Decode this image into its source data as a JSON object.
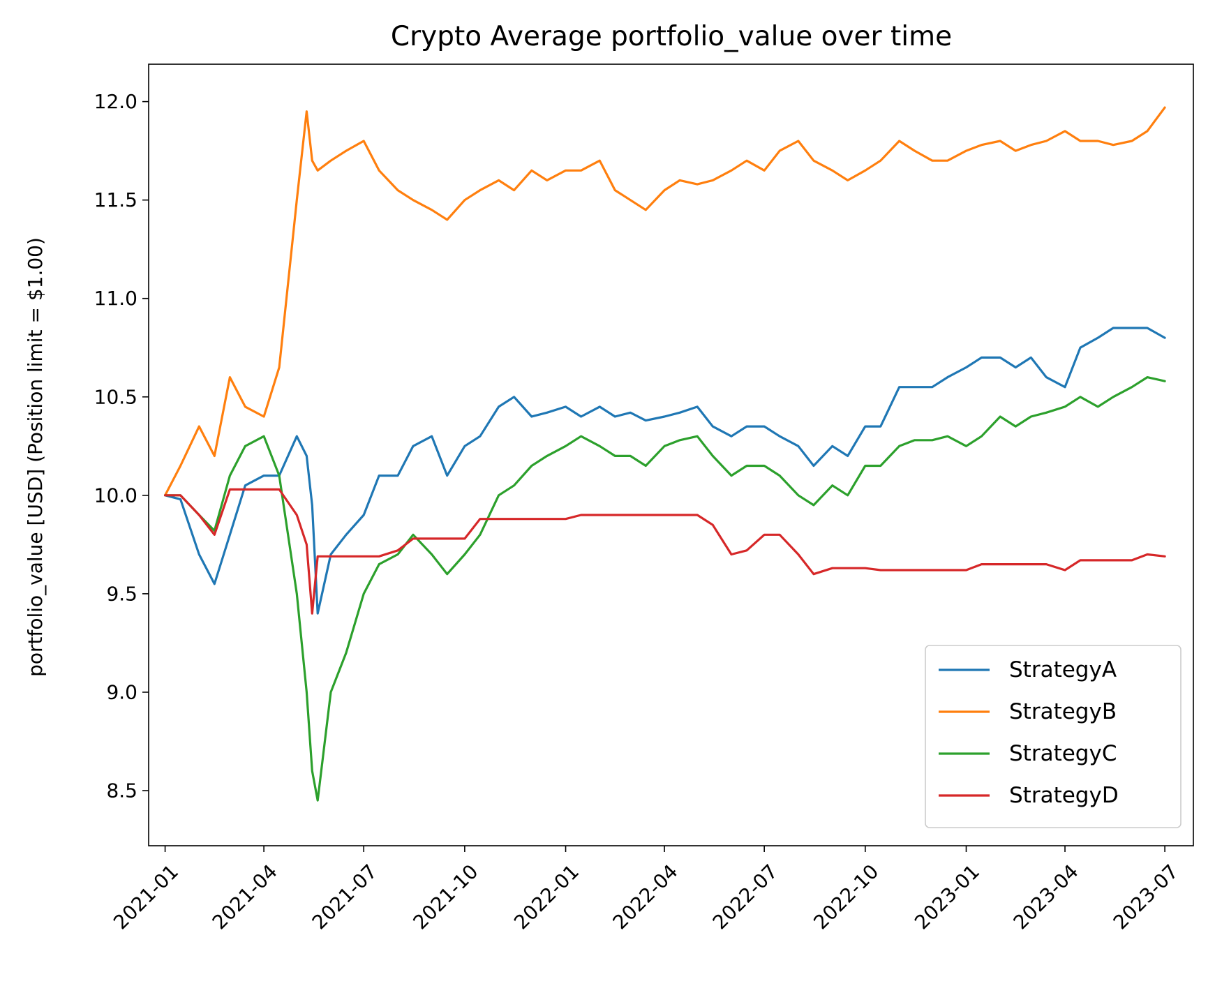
{
  "chart_data": {
    "type": "line",
    "title": "Crypto Average portfolio_value over time",
    "xlabel": "",
    "ylabel": "portfolio_value [USD] (Position limit = $1.00)",
    "xlim": [
      "2020-12-17",
      "2023-07-27"
    ],
    "ylim": [
      8.22,
      12.19
    ],
    "x_ticks": [
      "2021-01",
      "2021-04",
      "2021-07",
      "2021-10",
      "2022-01",
      "2022-04",
      "2022-07",
      "2022-10",
      "2023-01",
      "2023-04",
      "2023-07"
    ],
    "y_ticks": [
      "8.5",
      "9.0",
      "9.5",
      "10.0",
      "10.5",
      "11.0",
      "11.5",
      "12.0"
    ],
    "y_tick_values": [
      8.5,
      9.0,
      9.5,
      10.0,
      10.5,
      11.0,
      11.5,
      12.0
    ],
    "grid": false,
    "legend_position": "lower-right",
    "x": [
      "2021-01-01",
      "2021-01-15",
      "2021-02-01",
      "2021-02-15",
      "2021-03-01",
      "2021-03-15",
      "2021-04-01",
      "2021-04-15",
      "2021-05-01",
      "2021-05-10",
      "2021-05-15",
      "2021-05-20",
      "2021-06-01",
      "2021-06-15",
      "2021-07-01",
      "2021-07-15",
      "2021-08-01",
      "2021-08-15",
      "2021-09-01",
      "2021-09-15",
      "2021-10-01",
      "2021-10-15",
      "2021-11-01",
      "2021-11-15",
      "2021-12-01",
      "2021-12-15",
      "2022-01-01",
      "2022-01-15",
      "2022-02-01",
      "2022-02-15",
      "2022-03-01",
      "2022-03-15",
      "2022-04-01",
      "2022-04-15",
      "2022-05-01",
      "2022-05-15",
      "2022-06-01",
      "2022-06-15",
      "2022-07-01",
      "2022-07-15",
      "2022-08-01",
      "2022-08-15",
      "2022-09-01",
      "2022-09-15",
      "2022-10-01",
      "2022-10-15",
      "2022-11-01",
      "2022-11-15",
      "2022-12-01",
      "2022-12-15",
      "2023-01-01",
      "2023-01-15",
      "2023-02-01",
      "2023-02-15",
      "2023-03-01",
      "2023-03-15",
      "2023-04-01",
      "2023-04-15",
      "2023-05-01",
      "2023-05-15",
      "2023-06-01",
      "2023-06-15",
      "2023-07-01"
    ],
    "series": [
      {
        "name": "StrategyA",
        "color": "#1f77b4",
        "values": [
          10.0,
          9.98,
          9.7,
          9.55,
          9.8,
          10.05,
          10.1,
          10.1,
          10.3,
          10.2,
          9.95,
          9.4,
          9.7,
          9.8,
          9.9,
          10.1,
          10.1,
          10.25,
          10.3,
          10.1,
          10.25,
          10.3,
          10.45,
          10.5,
          10.4,
          10.42,
          10.45,
          10.4,
          10.45,
          10.4,
          10.42,
          10.38,
          10.4,
          10.42,
          10.45,
          10.35,
          10.3,
          10.35,
          10.35,
          10.3,
          10.25,
          10.15,
          10.25,
          10.2,
          10.35,
          10.35,
          10.55,
          10.55,
          10.55,
          10.6,
          10.65,
          10.7,
          10.7,
          10.65,
          10.7,
          10.6,
          10.55,
          10.75,
          10.8,
          10.85,
          10.85,
          10.85,
          10.8
        ]
      },
      {
        "name": "StrategyB",
        "color": "#ff7f0e",
        "values": [
          10.0,
          10.15,
          10.35,
          10.2,
          10.6,
          10.45,
          10.4,
          10.65,
          11.5,
          11.95,
          11.7,
          11.65,
          11.7,
          11.75,
          11.8,
          11.65,
          11.55,
          11.5,
          11.45,
          11.4,
          11.5,
          11.55,
          11.6,
          11.55,
          11.65,
          11.6,
          11.65,
          11.65,
          11.7,
          11.55,
          11.5,
          11.45,
          11.55,
          11.6,
          11.58,
          11.6,
          11.65,
          11.7,
          11.65,
          11.75,
          11.8,
          11.7,
          11.65,
          11.6,
          11.65,
          11.7,
          11.8,
          11.75,
          11.7,
          11.7,
          11.75,
          11.78,
          11.8,
          11.75,
          11.78,
          11.8,
          11.85,
          11.8,
          11.8,
          11.78,
          11.8,
          11.85,
          11.97
        ]
      },
      {
        "name": "StrategyC",
        "color": "#2ca02c",
        "values": [
          10.0,
          10.0,
          9.9,
          9.82,
          10.1,
          10.25,
          10.3,
          10.1,
          9.5,
          9.0,
          8.6,
          8.45,
          9.0,
          9.2,
          9.5,
          9.65,
          9.7,
          9.8,
          9.7,
          9.6,
          9.7,
          9.8,
          10.0,
          10.05,
          10.15,
          10.2,
          10.25,
          10.3,
          10.25,
          10.2,
          10.2,
          10.15,
          10.25,
          10.28,
          10.3,
          10.2,
          10.1,
          10.15,
          10.15,
          10.1,
          10.0,
          9.95,
          10.05,
          10.0,
          10.15,
          10.15,
          10.25,
          10.28,
          10.28,
          10.3,
          10.25,
          10.3,
          10.4,
          10.35,
          10.4,
          10.42,
          10.45,
          10.5,
          10.45,
          10.5,
          10.55,
          10.6,
          10.58
        ]
      },
      {
        "name": "StrategyD",
        "color": "#d62728",
        "values": [
          10.0,
          10.0,
          9.9,
          9.8,
          10.03,
          10.03,
          10.03,
          10.03,
          9.9,
          9.75,
          9.4,
          9.69,
          9.69,
          9.69,
          9.69,
          9.69,
          9.72,
          9.78,
          9.78,
          9.78,
          9.78,
          9.88,
          9.88,
          9.88,
          9.88,
          9.88,
          9.88,
          9.9,
          9.9,
          9.9,
          9.9,
          9.9,
          9.9,
          9.9,
          9.9,
          9.85,
          9.7,
          9.72,
          9.8,
          9.8,
          9.7,
          9.6,
          9.63,
          9.63,
          9.63,
          9.62,
          9.62,
          9.62,
          9.62,
          9.62,
          9.62,
          9.65,
          9.65,
          9.65,
          9.65,
          9.65,
          9.62,
          9.67,
          9.67,
          9.67,
          9.67,
          9.7,
          9.69
        ]
      }
    ]
  }
}
